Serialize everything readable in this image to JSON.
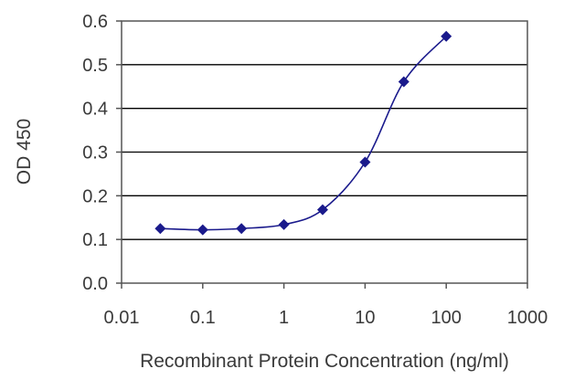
{
  "chart_data": {
    "type": "line",
    "title": "",
    "xlabel": "Recombinant Protein Concentration (ng/ml)",
    "ylabel": "OD 450",
    "xscale": "log",
    "xlim": [
      0.01,
      1000
    ],
    "ylim": [
      0,
      0.6
    ],
    "xticks": [
      "0.01",
      "0.1",
      "1",
      "10",
      "100",
      "1000"
    ],
    "yticks": [
      "0.0",
      "0.1",
      "0.2",
      "0.3",
      "0.4",
      "0.5",
      "0.6"
    ],
    "grid": "horizontal",
    "legend": "none",
    "series": [
      {
        "x": [
          0.03,
          0.1,
          0.3,
          1,
          3,
          10,
          30,
          100
        ],
        "y": [
          0.125,
          0.122,
          0.125,
          0.134,
          0.168,
          0.277,
          0.461,
          0.565
        ]
      }
    ],
    "colors": {
      "series": "#1a1a8c",
      "grid": "#000000",
      "axis": "#555555",
      "text": "#3a3a3a"
    }
  }
}
